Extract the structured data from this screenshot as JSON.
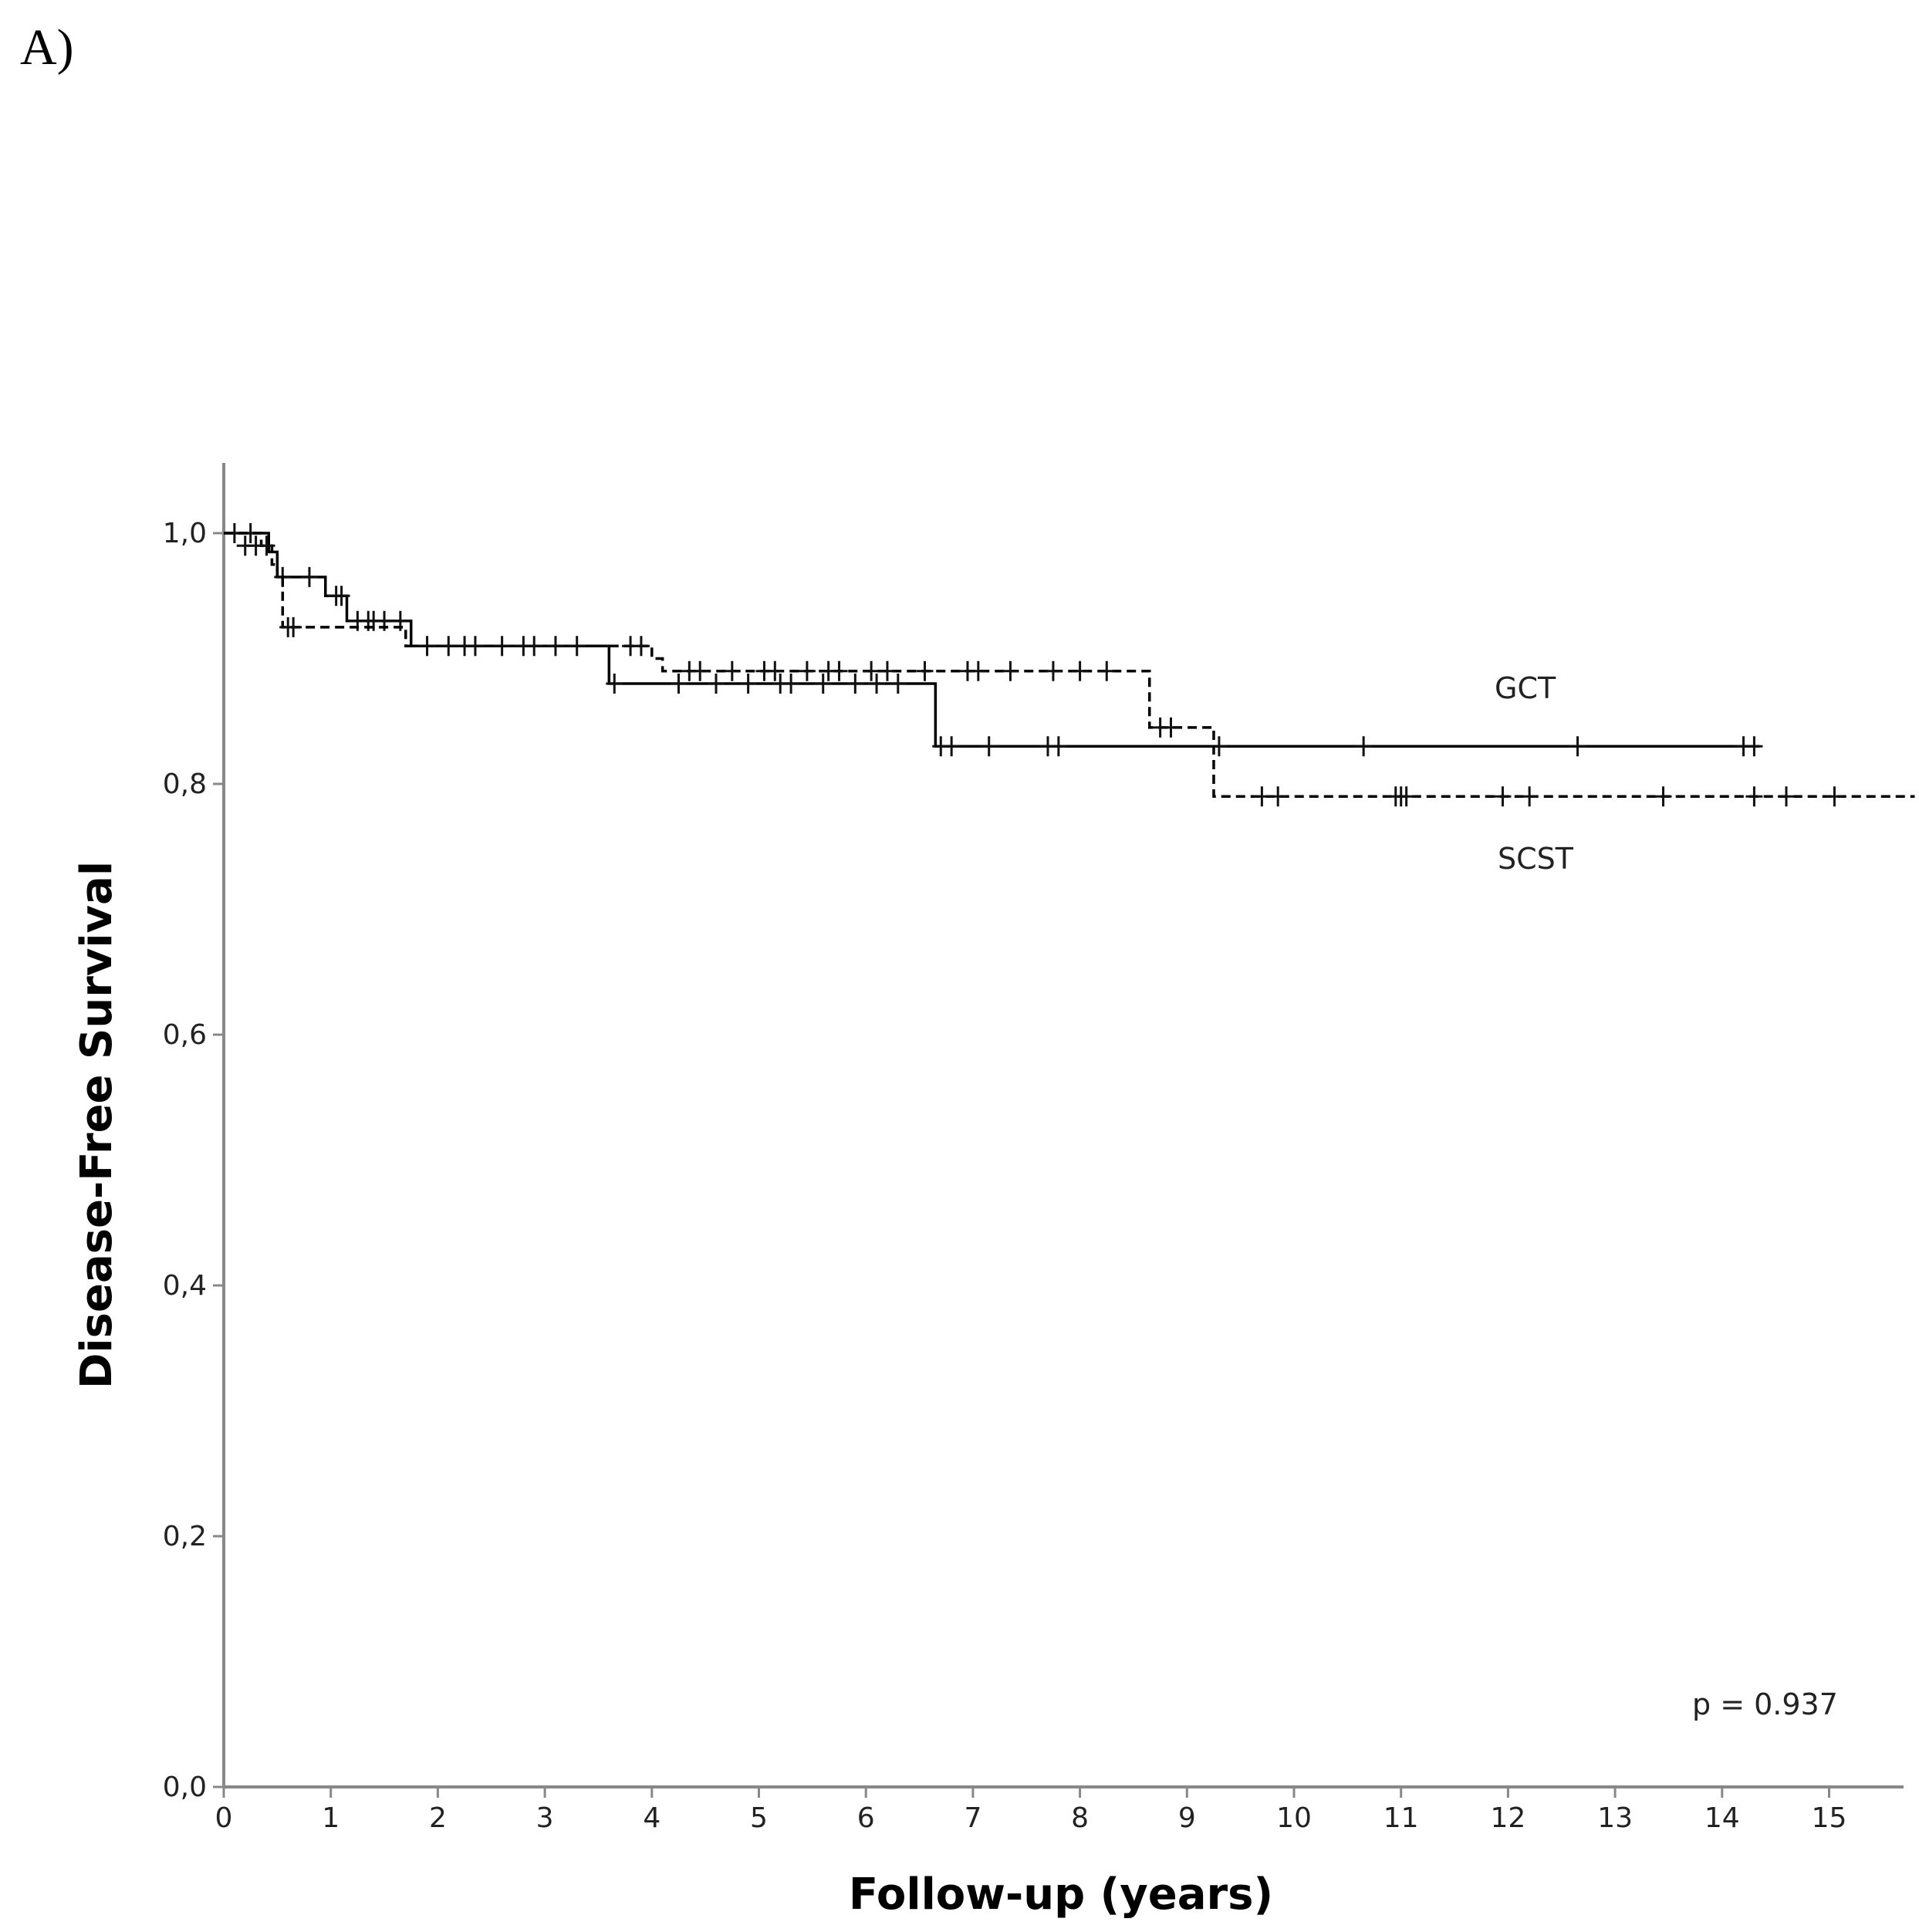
{
  "panel_label": "A)",
  "chart_data": {
    "type": "line",
    "subtype": "kaplan-meier-step",
    "title": "",
    "xlabel": "Follow-up (years)",
    "ylabel": "Disease-Free Survival",
    "xlim": [
      0,
      15.8
    ],
    "ylim": [
      0,
      1.05
    ],
    "x_ticks": [
      0,
      1,
      2,
      3,
      4,
      5,
      6,
      7,
      8,
      9,
      10,
      11,
      12,
      13,
      14,
      15
    ],
    "x_tick_labels": [
      "0",
      "1",
      "2",
      "3",
      "4",
      "5",
      "6",
      "7",
      "8",
      "9",
      "10",
      "11",
      "12",
      "13",
      "14",
      "15"
    ],
    "y_ticks": [
      0.0,
      0.2,
      0.4,
      0.6,
      0.8,
      1.0
    ],
    "y_tick_labels": [
      "0,0",
      "0,2",
      "0,4",
      "0,6",
      "0,8",
      "1,0"
    ],
    "grid": false,
    "legend": "none",
    "series": [
      {
        "name": "GCT",
        "label": "GCT",
        "style": "solid",
        "color": "#000000",
        "steps": [
          [
            0,
            1.0
          ],
          [
            0.42,
            0.985
          ],
          [
            0.5,
            0.965
          ],
          [
            0.95,
            0.95
          ],
          [
            1.15,
            0.93
          ],
          [
            1.75,
            0.91
          ],
          [
            3.6,
            0.88
          ],
          [
            6.65,
            0.83
          ],
          [
            14.35,
            0.83
          ]
        ],
        "censored": [
          [
            0.1,
            1.0
          ],
          [
            0.25,
            1.0
          ],
          [
            0.55,
            0.965
          ],
          [
            0.8,
            0.965
          ],
          [
            1.05,
            0.95
          ],
          [
            1.1,
            0.95
          ],
          [
            1.25,
            0.93
          ],
          [
            1.35,
            0.93
          ],
          [
            1.4,
            0.93
          ],
          [
            1.5,
            0.93
          ],
          [
            1.65,
            0.93
          ],
          [
            3.65,
            0.88
          ],
          [
            4.25,
            0.88
          ],
          [
            4.6,
            0.88
          ],
          [
            4.9,
            0.88
          ],
          [
            5.2,
            0.88
          ],
          [
            5.3,
            0.88
          ],
          [
            5.6,
            0.88
          ],
          [
            5.9,
            0.88
          ],
          [
            6.1,
            0.88
          ],
          [
            6.3,
            0.88
          ],
          [
            6.7,
            0.83
          ],
          [
            6.8,
            0.83
          ],
          [
            7.15,
            0.83
          ],
          [
            7.7,
            0.83
          ],
          [
            7.8,
            0.83
          ],
          [
            9.3,
            0.83
          ],
          [
            10.65,
            0.83
          ],
          [
            12.65,
            0.83
          ],
          [
            14.2,
            0.83
          ],
          [
            14.3,
            0.83
          ]
        ]
      },
      {
        "name": "SCST",
        "label": "SCST",
        "style": "dashed",
        "color": "#000000",
        "steps": [
          [
            0,
            1.0
          ],
          [
            0.35,
            0.99
          ],
          [
            0.45,
            0.975
          ],
          [
            0.5,
            0.965
          ],
          [
            0.55,
            0.925
          ],
          [
            1.7,
            0.91
          ],
          [
            4.0,
            0.9
          ],
          [
            4.1,
            0.89
          ],
          [
            8.65,
            0.845
          ],
          [
            9.25,
            0.79
          ],
          [
            15.8,
            0.79
          ]
        ],
        "censored": [
          [
            0.2,
            0.99
          ],
          [
            0.3,
            0.99
          ],
          [
            0.4,
            0.99
          ],
          [
            0.6,
            0.925
          ],
          [
            0.65,
            0.925
          ],
          [
            1.9,
            0.91
          ],
          [
            2.1,
            0.91
          ],
          [
            2.25,
            0.91
          ],
          [
            2.35,
            0.91
          ],
          [
            2.6,
            0.91
          ],
          [
            2.8,
            0.91
          ],
          [
            2.9,
            0.91
          ],
          [
            3.1,
            0.91
          ],
          [
            3.3,
            0.91
          ],
          [
            3.8,
            0.91
          ],
          [
            3.9,
            0.91
          ],
          [
            4.35,
            0.89
          ],
          [
            4.45,
            0.89
          ],
          [
            4.75,
            0.89
          ],
          [
            5.05,
            0.89
          ],
          [
            5.15,
            0.89
          ],
          [
            5.45,
            0.89
          ],
          [
            5.65,
            0.89
          ],
          [
            5.75,
            0.89
          ],
          [
            6.05,
            0.89
          ],
          [
            6.2,
            0.89
          ],
          [
            6.55,
            0.89
          ],
          [
            6.95,
            0.89
          ],
          [
            7.05,
            0.89
          ],
          [
            7.35,
            0.89
          ],
          [
            7.75,
            0.89
          ],
          [
            8.0,
            0.89
          ],
          [
            8.25,
            0.89
          ],
          [
            8.75,
            0.845
          ],
          [
            8.85,
            0.845
          ],
          [
            9.7,
            0.79
          ],
          [
            9.85,
            0.79
          ],
          [
            10.95,
            0.79
          ],
          [
            11.0,
            0.79
          ],
          [
            11.05,
            0.79
          ],
          [
            11.95,
            0.79
          ],
          [
            12.2,
            0.79
          ],
          [
            13.45,
            0.79
          ],
          [
            14.3,
            0.79
          ],
          [
            14.6,
            0.79
          ],
          [
            15.05,
            0.79
          ]
        ]
      }
    ],
    "annotations": [
      {
        "id": "gct",
        "text": "GCT"
      },
      {
        "id": "scst",
        "text": "SCST"
      },
      {
        "id": "pvalue",
        "text": "p = 0.937"
      }
    ]
  }
}
